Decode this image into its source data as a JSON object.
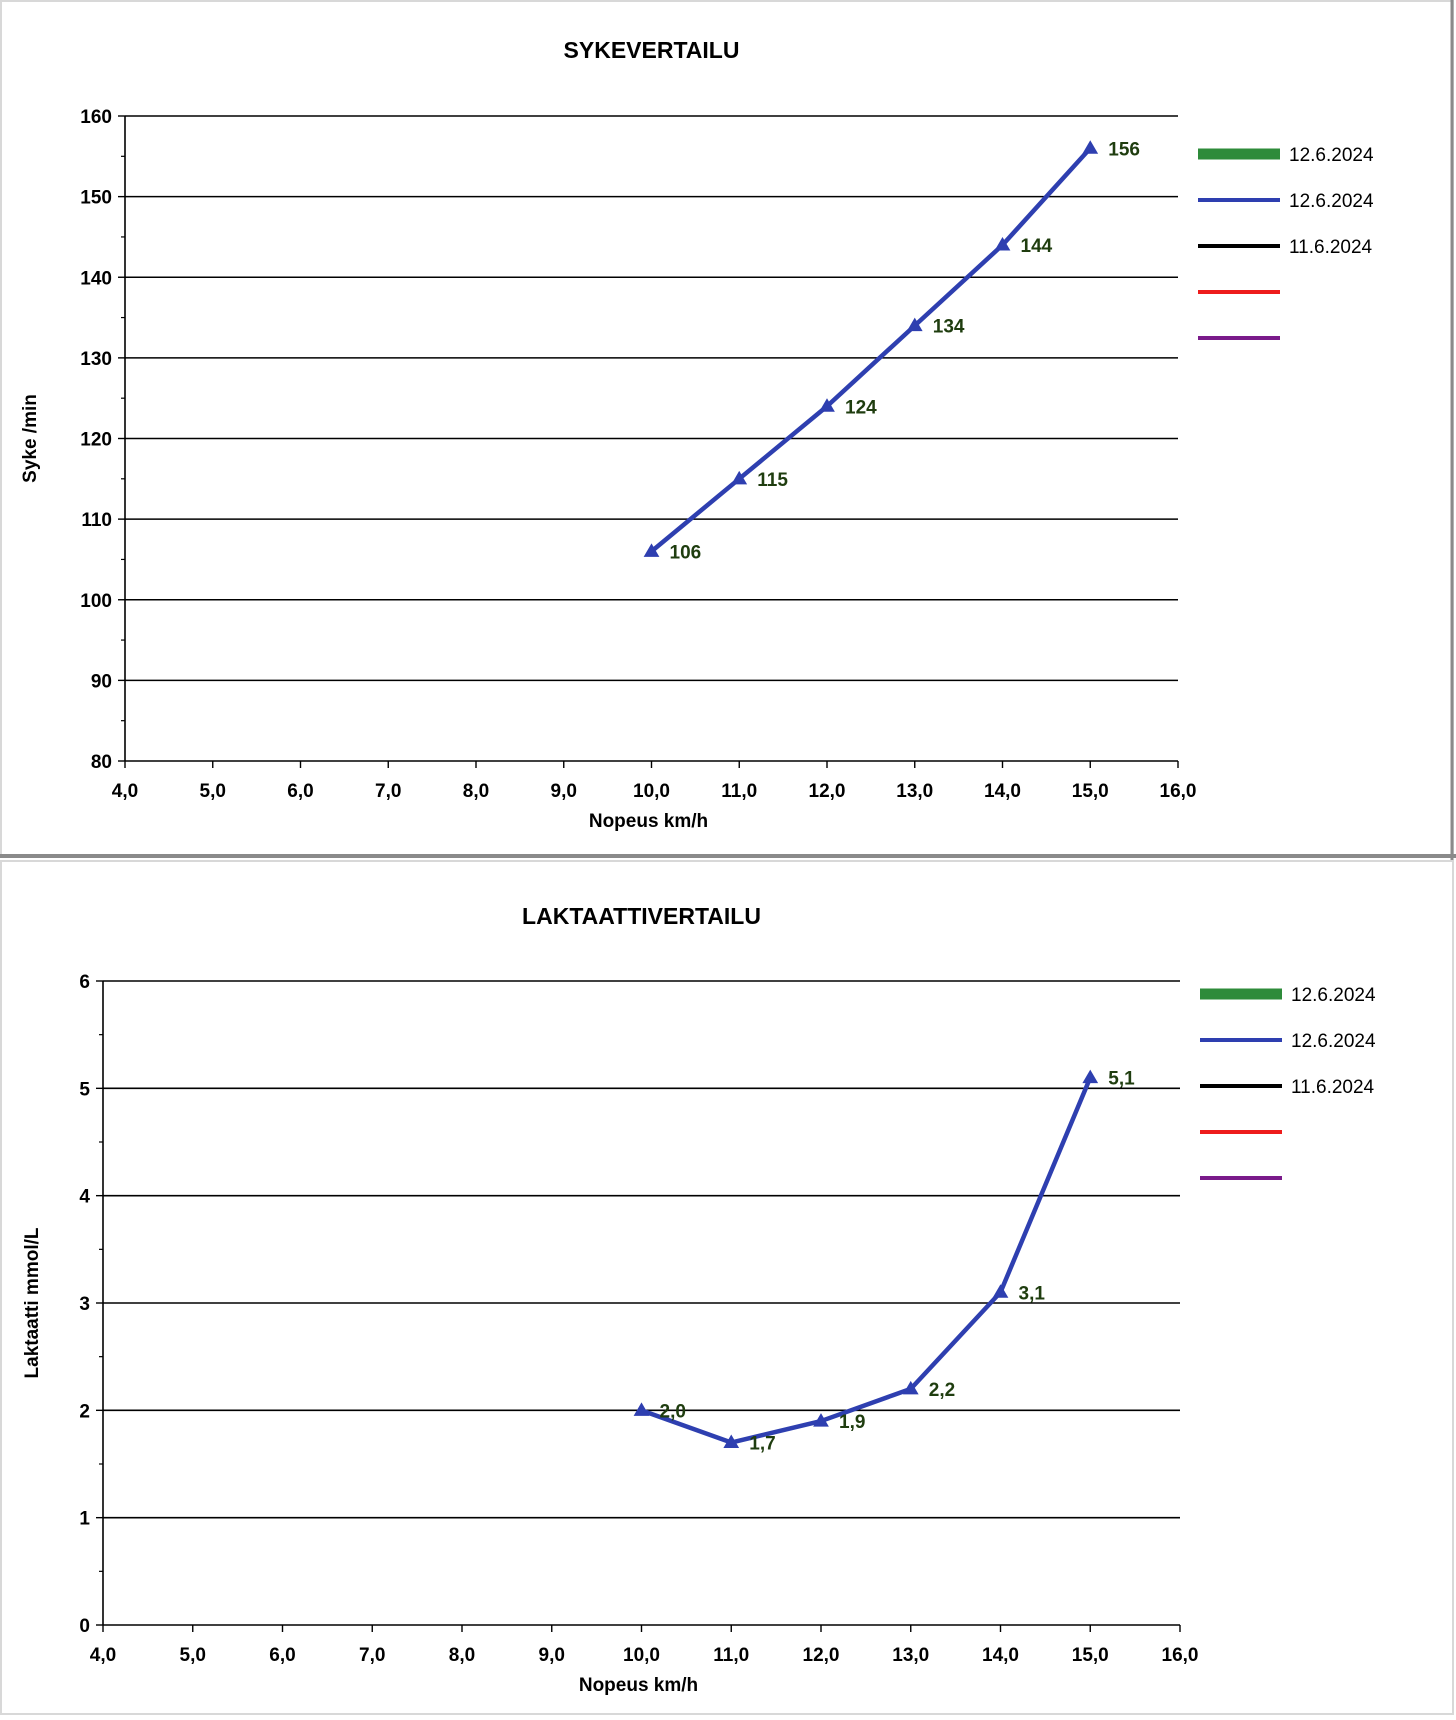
{
  "chart_data": [
    {
      "type": "line",
      "title": "SYKEVERTAILU",
      "xlabel": "Nopeus km/h",
      "ylabel": "Syke /min",
      "xlim": [
        4,
        16
      ],
      "ylim": [
        80,
        160
      ],
      "x_ticks": [
        4,
        5,
        6,
        7,
        8,
        9,
        10,
        11,
        12,
        13,
        14,
        15,
        16
      ],
      "x_tick_labels": [
        "4,0",
        "5,0",
        "6,0",
        "7,0",
        "8,0",
        "9,0",
        "10,0",
        "11,0",
        "12,0",
        "13,0",
        "14,0",
        "15,0",
        "16,0"
      ],
      "y_ticks": [
        80,
        90,
        100,
        110,
        120,
        130,
        140,
        150,
        160
      ],
      "y_tick_labels": [
        "80",
        "90",
        "100",
        "110",
        "120",
        "130",
        "140",
        "150",
        "160"
      ],
      "y_minor_step": 5,
      "grid": true,
      "legend_position": "right",
      "legend": [
        {
          "label": "12.6.2024",
          "color": "#2e8b3a"
        },
        {
          "label": "12.6.2024",
          "color": "#2e3fb0"
        },
        {
          "label": "11.6.2024",
          "color": "#000000"
        },
        {
          "label": "",
          "color": "#ee1c1c"
        },
        {
          "label": "",
          "color": "#7a1a8a"
        }
      ],
      "series": [
        {
          "name": "12.6.2024",
          "color": "#2e3fb0",
          "marker": "triangle",
          "x": [
            10,
            11,
            12,
            13,
            14,
            15
          ],
          "y": [
            106,
            115,
            124,
            134,
            144,
            156
          ],
          "labels": [
            "106",
            "115",
            "124",
            "134",
            "144",
            "156"
          ]
        }
      ]
    },
    {
      "type": "line",
      "title": "LAKTAATTIVERTAILU",
      "xlabel": "Nopeus km/h",
      "ylabel": "Laktaatti mmol/L",
      "xlim": [
        4,
        16
      ],
      "ylim": [
        0,
        6
      ],
      "x_ticks": [
        4,
        5,
        6,
        7,
        8,
        9,
        10,
        11,
        12,
        13,
        14,
        15,
        16
      ],
      "x_tick_labels": [
        "4,0",
        "5,0",
        "6,0",
        "7,0",
        "8,0",
        "9,0",
        "10,0",
        "11,0",
        "12,0",
        "13,0",
        "14,0",
        "15,0",
        "16,0"
      ],
      "y_ticks": [
        0,
        1,
        2,
        3,
        4,
        5,
        6
      ],
      "y_tick_labels": [
        "0",
        "1",
        "2",
        "3",
        "4",
        "5",
        "6"
      ],
      "y_minor_step": 0.5,
      "grid": true,
      "legend_position": "right",
      "legend": [
        {
          "label": "12.6.2024",
          "color": "#2e8b3a"
        },
        {
          "label": "12.6.2024",
          "color": "#2e3fb0"
        },
        {
          "label": "11.6.2024",
          "color": "#000000"
        },
        {
          "label": "",
          "color": "#ee1c1c"
        },
        {
          "label": "",
          "color": "#7a1a8a"
        }
      ],
      "series": [
        {
          "name": "12.6.2024",
          "color": "#2e3fb0",
          "marker": "triangle",
          "x": [
            10,
            11,
            12,
            13,
            14,
            15
          ],
          "y": [
            2.0,
            1.7,
            1.9,
            2.2,
            3.1,
            5.1
          ],
          "labels": [
            "2,0",
            "1,7",
            "1,9",
            "2,2",
            "3,1",
            "5,1"
          ]
        }
      ]
    }
  ]
}
